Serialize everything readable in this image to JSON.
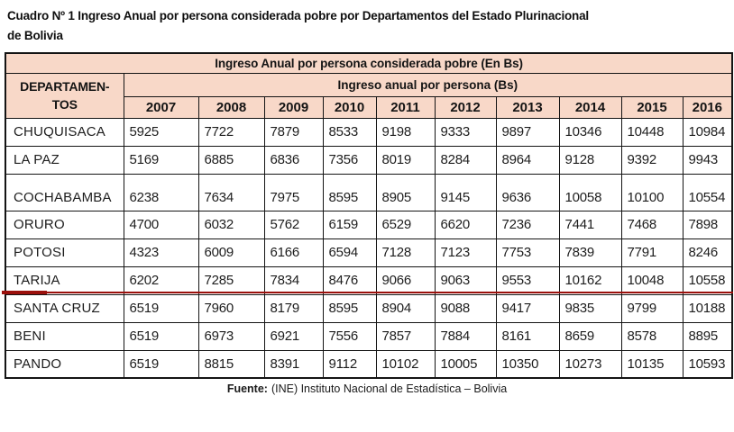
{
  "title": {
    "line1": "Cuadro Nº 1 Ingreso Anual por persona considerada pobre por Departamentos del Estado Plurinacional",
    "line2": "de Bolivia"
  },
  "table": {
    "header_main": "Ingreso Anual por persona considerada pobre (En Bs)",
    "dept_header": {
      "line1": "DEPARTAMEN-",
      "line2": "TOS"
    },
    "col_group_label": "Ingreso anual por persona (Bs)",
    "years": [
      "2007",
      "2008",
      "2009",
      "2010",
      "2011",
      "2012",
      "2013",
      "2014",
      "2015",
      "2016"
    ],
    "rows": [
      {
        "name": "CHUQUISACA",
        "values": [
          "5925",
          "7722",
          "7879",
          "8533",
          "9198",
          "9333",
          "9897",
          "10346",
          "10448",
          "10984"
        ]
      },
      {
        "name": "LA PAZ",
        "values": [
          "5169",
          "6885",
          "6836",
          "7356",
          "8019",
          "8284",
          "8964",
          "9128",
          "9392",
          "9943"
        ]
      },
      {
        "name": "COCHABAMBA",
        "values": [
          "6238",
          "7634",
          "7975",
          "8595",
          "8905",
          "9145",
          "9636",
          "10058",
          "10100",
          "10554"
        ],
        "tall": true
      },
      {
        "name": "ORURO",
        "values": [
          "4700",
          "6032",
          "5762",
          "6159",
          "6529",
          "6620",
          "7236",
          "7441",
          "7468",
          "7898"
        ]
      },
      {
        "name": "POTOSI",
        "values": [
          "4323",
          "6009",
          "6166",
          "6594",
          "7128",
          "7123",
          "7753",
          "7839",
          "7791",
          "8246"
        ]
      },
      {
        "name": "TARIJA",
        "values": [
          "6202",
          "7285",
          "7834",
          "8476",
          "9066",
          "9063",
          "9553",
          "10162",
          "10048",
          "10558"
        ],
        "red_underline": true
      },
      {
        "name": "SANTA CRUZ",
        "values": [
          "6519",
          "7960",
          "8179",
          "8595",
          "8904",
          "9088",
          "9417",
          "9835",
          "9799",
          "10188"
        ]
      },
      {
        "name": "BENI",
        "values": [
          "6519",
          "6973",
          "6921",
          "7556",
          "7857",
          "7884",
          "8161",
          "8659",
          "8578",
          "8895"
        ]
      },
      {
        "name": "PANDO",
        "values": [
          "6519",
          "8815",
          "8391",
          "9112",
          "10102",
          "10005",
          "10350",
          "10273",
          "10135",
          "10593"
        ]
      }
    ]
  },
  "source": {
    "label": "Fuente:",
    "text": "(INE) Instituto Nacional de Estadística – Bolivia"
  },
  "colors": {
    "header_bg": "#f8d8c8",
    "border": "#141414",
    "red_line": "#9b100c"
  }
}
